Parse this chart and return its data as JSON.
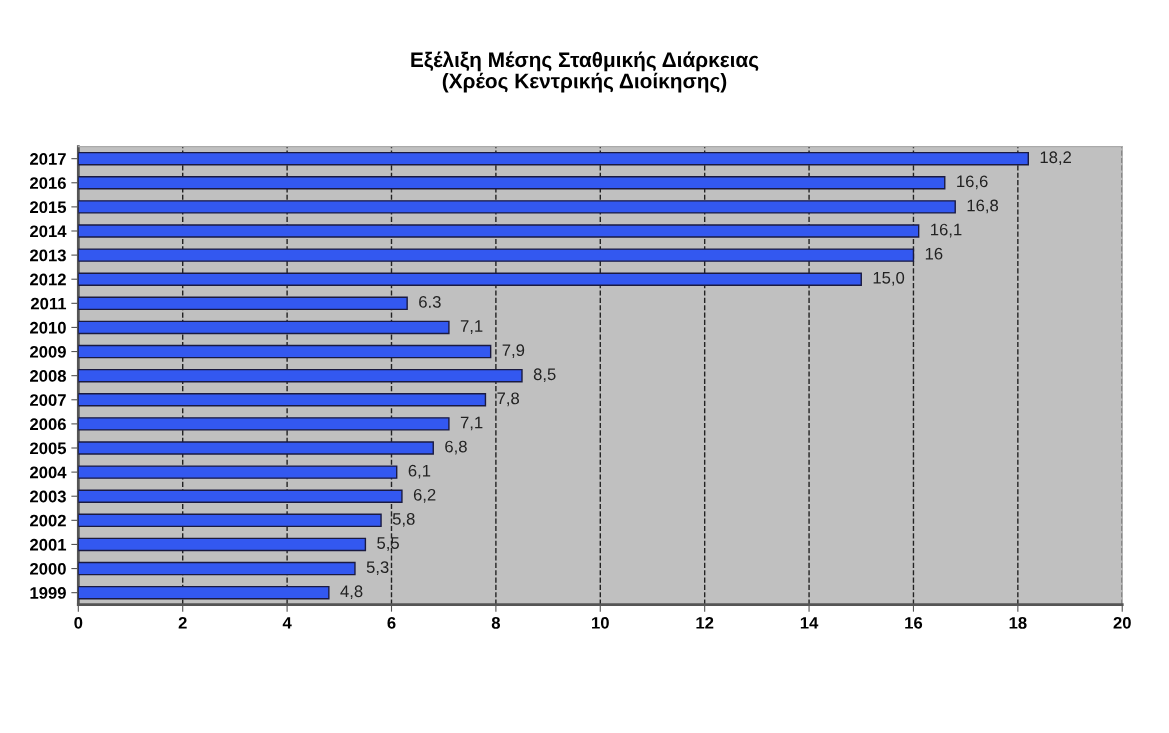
{
  "chart_data": {
    "type": "bar",
    "orientation": "horizontal",
    "title": "Εξέλιξη Μέσης Σταθμικής Διάρκειας\n(Χρέος Κεντρικής Διοίκησης)",
    "categories": [
      "2017",
      "2016",
      "2015",
      "2014",
      "2013",
      "2012",
      "2011",
      "2010",
      "2009",
      "2008",
      "2007",
      "2006",
      "2005",
      "2004",
      "2003",
      "2002",
      "2001",
      "2000",
      "1999"
    ],
    "values": [
      18.2,
      16.6,
      16.8,
      16.1,
      16,
      15.0,
      6.3,
      7.1,
      7.9,
      8.5,
      7.8,
      7.1,
      6.8,
      6.1,
      6.2,
      5.8,
      5.5,
      5.3,
      4.8
    ],
    "value_labels": [
      "18,2",
      "16,6",
      "16,8",
      "16,1",
      "16",
      "15,0",
      "6.3",
      "7,1",
      "7,9",
      "8,5",
      "7,8",
      "7,1",
      "6,8",
      "6,1",
      "6,2",
      "5,8",
      "5,5",
      "5,3",
      "4,8"
    ],
    "color": "#3358f0",
    "xlim": [
      0,
      20
    ],
    "xticks": [
      0,
      2,
      4,
      6,
      8,
      10,
      12,
      14,
      16,
      18,
      20
    ],
    "grid": "x",
    "line_style": "dashed",
    "legend": false
  }
}
